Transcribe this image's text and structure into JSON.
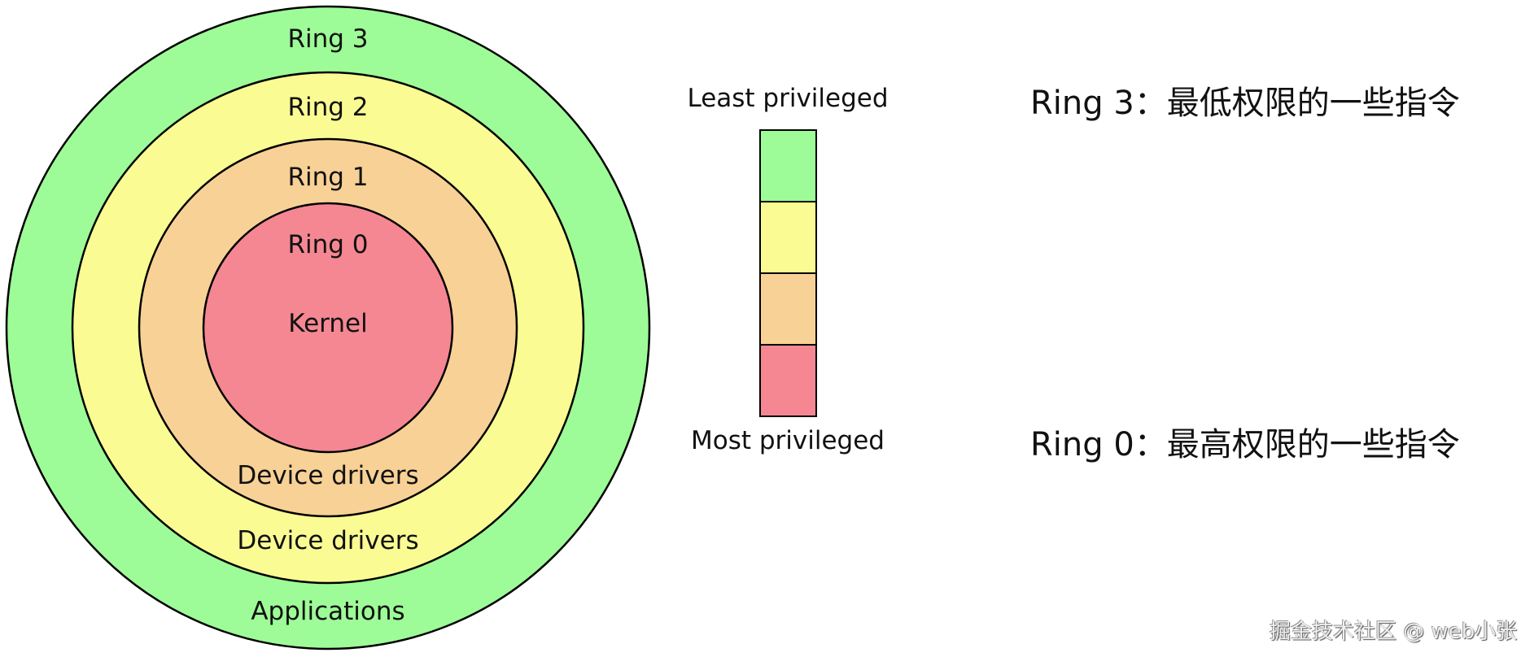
{
  "rings": [
    {
      "name": "Ring 3",
      "role": "Applications",
      "color": "#9dfc97"
    },
    {
      "name": "Ring 2",
      "role": "Device drivers",
      "color": "#fbfb94"
    },
    {
      "name": "Ring 1",
      "role": "Device drivers",
      "color": "#f8d196"
    },
    {
      "name": "Ring 0",
      "role": "Kernel",
      "color": "#f48792"
    }
  ],
  "scale": {
    "top_label": "Least privileged",
    "bottom_label": "Most privileged"
  },
  "notes": [
    "Ring 3：最低权限的一些指令",
    "Ring 0：最高权限的一些指令"
  ],
  "watermark": "掘金技术社区 @ web小张"
}
